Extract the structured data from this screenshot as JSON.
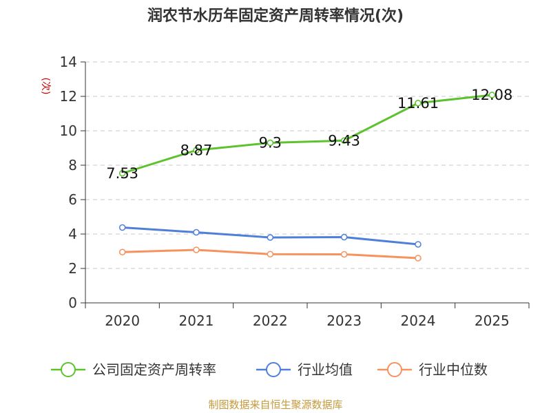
{
  "chart_data": {
    "type": "line",
    "title": "润农节水历年固定资产周转率情况(次)",
    "ylabel": "(次)",
    "categories": [
      "2020",
      "2021",
      "2022",
      "2023",
      "2024",
      "2025"
    ],
    "ylim": [
      0,
      14
    ],
    "yticks": [
      0,
      2,
      4,
      6,
      8,
      10,
      12,
      14
    ],
    "grid": true,
    "legend_position": "bottom",
    "series": [
      {
        "name": "公司固定资产周转率",
        "color": "#5cc22e",
        "values": [
          7.53,
          8.87,
          9.3,
          9.43,
          11.61,
          12.08
        ],
        "labels": [
          "7.53",
          "8.87",
          "9.3",
          "9.43",
          "11.61",
          "12.08"
        ]
      },
      {
        "name": "行业均值",
        "color": "#4f7fd9",
        "values": [
          4.38,
          4.1,
          3.8,
          3.82,
          3.4,
          null
        ]
      },
      {
        "name": "行业中位数",
        "color": "#f5925e",
        "values": [
          2.95,
          3.08,
          2.83,
          2.82,
          2.6,
          null
        ]
      }
    ]
  },
  "footer": {
    "source": "制图数据来自恒生聚源数据库"
  }
}
